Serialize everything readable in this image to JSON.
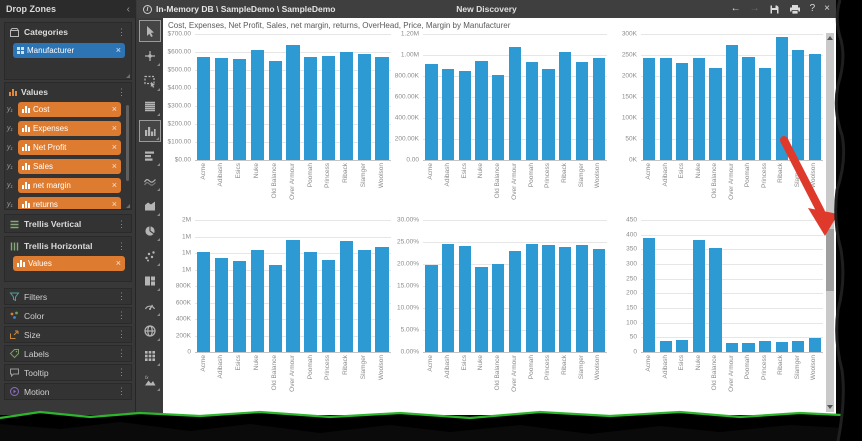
{
  "titlebar": {
    "path": "In-Memory DB \\ SampleDemo \\ SampleDemo",
    "title": "New Discovery",
    "back": "←",
    "forward": "→",
    "help": "?",
    "close": "×"
  },
  "drop_zones": {
    "header": "Drop Zones",
    "collapse": "‹",
    "menu_dots": "⋮",
    "pill_close": "×",
    "categories": {
      "label": "Categories",
      "pill": "Manufacturer"
    },
    "values": {
      "label": "Values",
      "axis_prefix": "y₁",
      "pills": [
        "Cost",
        "Expenses",
        "Net Profit",
        "Sales",
        "net margin",
        "returns"
      ],
      "partial_pill_visible": true
    },
    "trellis_vertical": {
      "label": "Trellis Vertical"
    },
    "trellis_horizontal": {
      "label": "Trellis Horizontal",
      "pill": "Values"
    },
    "filters": {
      "label": "Filters"
    },
    "color": {
      "label": "Color"
    },
    "size": {
      "label": "Size"
    },
    "labels": {
      "label": "Labels"
    },
    "tooltip": {
      "label": "Tooltip"
    },
    "motion": {
      "label": "Motion"
    }
  },
  "toolbar": {
    "icons": [
      "pointer",
      "crosshair",
      "lasso-select",
      "grid-table",
      "column-chart",
      "bar-chart",
      "line-chart",
      "area-chart",
      "pie-chart",
      "scatter-chart",
      "treemap",
      "gauge",
      "map-globe",
      "matrix",
      "image-chart"
    ],
    "selected": [
      "pointer",
      "column-chart"
    ]
  },
  "canvas": {
    "title": "Cost, Expenses, Net Profit, Sales, net margin, returns, OverHead, Price, Margin by Manufacturer"
  },
  "chart_data": [
    {
      "type": "bar",
      "ymax": 700,
      "y_ticks": [
        "$700.00",
        "$600.00",
        "$500.00",
        "$400.00",
        "$300.00",
        "$200.00",
        "$100.00",
        "$0.00"
      ],
      "categories": [
        "Acme",
        "Adibash",
        "Esics",
        "Nuke",
        "Old Balance",
        "Over Armour",
        "Poomah",
        "Princess",
        "Riback",
        "Slamger",
        "Woolson"
      ],
      "values": [
        575,
        565,
        562,
        610,
        550,
        640,
        575,
        580,
        600,
        590,
        570
      ]
    },
    {
      "type": "bar",
      "ymax": 1200000,
      "y_ticks": [
        "1.20M",
        "1.00M",
        "800.00K",
        "600.00K",
        "400.00K",
        "200.00K",
        "0.00"
      ],
      "categories": [
        "Acme",
        "Adibash",
        "Esics",
        "Nuke",
        "Old Balance",
        "Over Armour",
        "Poomah",
        "Princess",
        "Riback",
        "Slamger",
        "Woolson"
      ],
      "values": [
        915000,
        870000,
        850000,
        940000,
        810000,
        1080000,
        935000,
        870000,
        1030000,
        935000,
        975000
      ]
    },
    {
      "type": "bar",
      "ymax": 300000,
      "y_ticks": [
        "300K",
        "250K",
        "200K",
        "150K",
        "100K",
        "50K",
        "0K"
      ],
      "categories": [
        "Acme",
        "Adibash",
        "Esics",
        "Nuke",
        "Old Balance",
        "Over Armour",
        "Poomah",
        "Princess",
        "Riback",
        "Slamger",
        "Woolson"
      ],
      "values": [
        242000,
        244000,
        232000,
        242000,
        218000,
        275000,
        245000,
        220000,
        293000,
        263000,
        253000
      ]
    },
    {
      "type": "bar",
      "ymax": 2000000,
      "y_ticks": [
        "2M",
        "1M",
        "1M",
        "1M",
        "800K",
        "600K",
        "400K",
        "200K",
        "0"
      ],
      "categories": [
        "Acme",
        "Adibash",
        "Esics",
        "Nuke",
        "Old Balance",
        "Over Armour",
        "Poomah",
        "Princess",
        "Riback",
        "Slamger",
        "Woolson"
      ],
      "values": [
        1520000,
        1420000,
        1380000,
        1540000,
        1320000,
        1700000,
        1520000,
        1390000,
        1680000,
        1540000,
        1590000
      ]
    },
    {
      "type": "bar",
      "ymax": 30,
      "y_ticks": [
        "30.00%",
        "25.00%",
        "20.00%",
        "15.00%",
        "10.00%",
        "5.00%",
        "0.00%"
      ],
      "categories": [
        "Acme",
        "Adibash",
        "Esics",
        "Nuke",
        "Old Balance",
        "Over Armour",
        "Poomah",
        "Princess",
        "Riback",
        "Slamger",
        "Woolson"
      ],
      "values": [
        19.8,
        24.6,
        24.0,
        19.4,
        20.0,
        23.0,
        24.5,
        24.4,
        23.9,
        24.3,
        23.3
      ]
    },
    {
      "type": "bar",
      "ymax": 450,
      "y_ticks": [
        "450",
        "400",
        "350",
        "300",
        "250",
        "200",
        "150",
        "100",
        "50",
        "0"
      ],
      "categories": [
        "Acme",
        "Adibash",
        "Esics",
        "Nuke",
        "Old Balance",
        "Over Armour",
        "Poomah",
        "Princess",
        "Riback",
        "Slamger",
        "Woolson"
      ],
      "values": [
        390,
        37,
        40,
        383,
        353,
        32,
        32,
        38,
        33,
        36,
        47
      ]
    }
  ],
  "colors": {
    "bar": "#2d9ad4",
    "pill_orange": "#dd7b30",
    "pill_blue": "#2d74b5",
    "arrow_red": "#df392c",
    "tear_green": "#2eb52e"
  }
}
